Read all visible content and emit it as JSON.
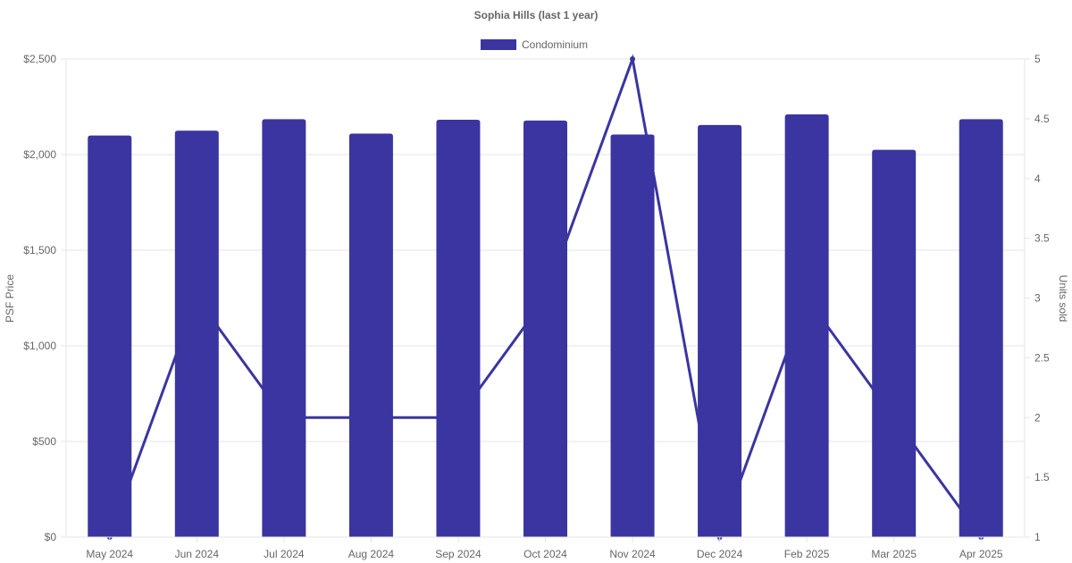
{
  "chart_data": {
    "type": "bar",
    "title": "Sophia Hills (last 1 year)",
    "categories": [
      "May 2024",
      "Jun 2024",
      "Jul 2024",
      "Aug 2024",
      "Sep 2024",
      "Oct 2024",
      "Nov 2024",
      "Dec 2024",
      "Feb 2025",
      "Mar 2025",
      "Apr 2025"
    ],
    "series": [
      {
        "name": "Condominium",
        "axis": "left",
        "type": "bar",
        "values": [
          2100,
          2125,
          2185,
          2110,
          2182,
          2178,
          2105,
          2155,
          2210,
          2025,
          2185
        ]
      },
      {
        "axis": "right",
        "type": "line",
        "values": [
          1,
          3,
          2,
          2,
          2,
          3,
          5,
          1,
          3,
          2,
          1
        ]
      }
    ],
    "ylabel": "PSF Price",
    "y2label": "Units sold",
    "ylim": [
      0,
      2500
    ],
    "y2lim": [
      1,
      5
    ],
    "yticks": [
      "$0",
      "$500",
      "$1,000",
      "$1,500",
      "$2,000",
      "$2,500"
    ],
    "y2ticks": [
      "1",
      "1.5",
      "2",
      "2.5",
      "3",
      "3.5",
      "4",
      "4.5",
      "5"
    ],
    "legend": "top-center",
    "grid": true,
    "color": "#3a35a0"
  }
}
